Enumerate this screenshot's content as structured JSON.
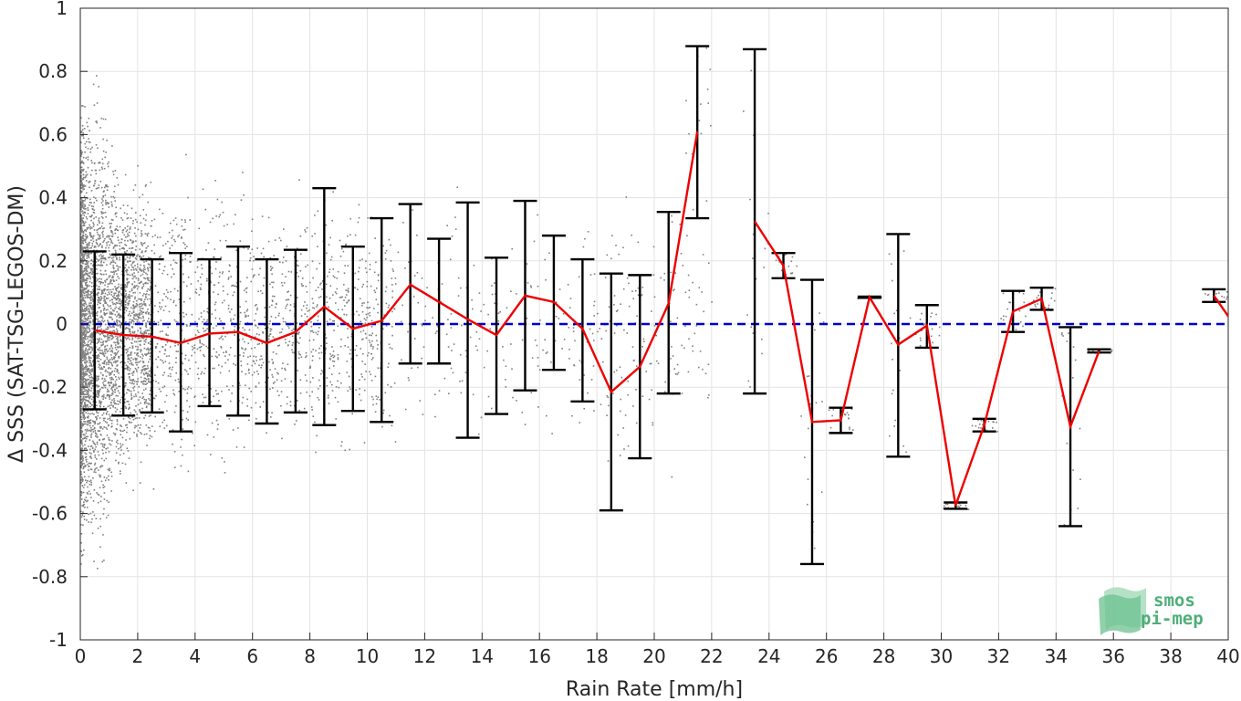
{
  "chart_data": {
    "type": "scatter",
    "xlabel": "Rain Rate [mm/h]",
    "ylabel": "Δ SSS (SAT-TSG-LEGOS-DM)",
    "xlim": [
      0,
      40
    ],
    "ylim": [
      -1,
      1
    ],
    "xticks": [
      0,
      2,
      4,
      6,
      8,
      10,
      12,
      14,
      16,
      18,
      20,
      22,
      24,
      26,
      28,
      30,
      32,
      34,
      36,
      38,
      40
    ],
    "yticks": [
      -1,
      -0.8,
      -0.6,
      -0.4,
      -0.2,
      0,
      0.2,
      0.4,
      0.6,
      0.8,
      1
    ],
    "ytick_labels": [
      "-1",
      "-0.8",
      "-0.6",
      "-0.4",
      "-0.2",
      "0",
      "0.2",
      "0.4",
      "0.6",
      "0.8",
      "1"
    ],
    "grid": true,
    "reference_line": {
      "y": 0,
      "color": "#0000d0",
      "style": "dashed"
    },
    "bins": [
      {
        "x": 0.5,
        "mean": -0.02,
        "lower": -0.27,
        "upper": 0.23
      },
      {
        "x": 1.5,
        "mean": -0.035,
        "lower": -0.29,
        "upper": 0.22
      },
      {
        "x": 2.5,
        "mean": -0.04,
        "lower": -0.28,
        "upper": 0.205
      },
      {
        "x": 3.5,
        "mean": -0.06,
        "lower": -0.34,
        "upper": 0.225
      },
      {
        "x": 4.5,
        "mean": -0.03,
        "lower": -0.26,
        "upper": 0.205
      },
      {
        "x": 5.5,
        "mean": -0.025,
        "lower": -0.29,
        "upper": 0.245
      },
      {
        "x": 6.5,
        "mean": -0.06,
        "lower": -0.315,
        "upper": 0.205
      },
      {
        "x": 7.5,
        "mean": -0.025,
        "lower": -0.28,
        "upper": 0.235
      },
      {
        "x": 8.5,
        "mean": 0.055,
        "lower": -0.32,
        "upper": 0.43
      },
      {
        "x": 9.5,
        "mean": -0.015,
        "lower": -0.275,
        "upper": 0.245
      },
      {
        "x": 10.5,
        "mean": 0.01,
        "lower": -0.31,
        "upper": 0.335
      },
      {
        "x": 11.5,
        "mean": 0.125,
        "lower": -0.125,
        "upper": 0.38
      },
      {
        "x": 12.5,
        "mean": 0.07,
        "lower": -0.125,
        "upper": 0.27
      },
      {
        "x": 13.5,
        "mean": 0.015,
        "lower": -0.36,
        "upper": 0.385
      },
      {
        "x": 14.5,
        "mean": -0.035,
        "lower": -0.285,
        "upper": 0.21
      },
      {
        "x": 15.5,
        "mean": 0.09,
        "lower": -0.21,
        "upper": 0.39
      },
      {
        "x": 16.5,
        "mean": 0.07,
        "lower": -0.145,
        "upper": 0.28
      },
      {
        "x": 17.5,
        "mean": -0.015,
        "lower": -0.245,
        "upper": 0.205
      },
      {
        "x": 18.5,
        "mean": -0.215,
        "lower": -0.59,
        "upper": 0.16
      },
      {
        "x": 19.5,
        "mean": -0.135,
        "lower": -0.425,
        "upper": 0.155
      },
      {
        "x": 20.5,
        "mean": 0.065,
        "lower": -0.22,
        "upper": 0.355
      },
      {
        "x": 21.5,
        "mean": 0.61,
        "lower": 0.335,
        "upper": 0.88
      },
      {
        "x": 22.5,
        "mean": null,
        "lower": null,
        "upper": null
      },
      {
        "x": 23.5,
        "mean": 0.325,
        "lower": -0.22,
        "upper": 0.87
      },
      {
        "x": 24.5,
        "mean": 0.185,
        "lower": 0.145,
        "upper": 0.225
      },
      {
        "x": 25.5,
        "mean": -0.31,
        "lower": -0.76,
        "upper": 0.14
      },
      {
        "x": 26.5,
        "mean": -0.305,
        "lower": -0.345,
        "upper": -0.265
      },
      {
        "x": 27.5,
        "mean": 0.085,
        "lower": 0.083,
        "upper": 0.087
      },
      {
        "x": 28.5,
        "mean": -0.065,
        "lower": -0.42,
        "upper": 0.285
      },
      {
        "x": 29.5,
        "mean": -0.005,
        "lower": -0.075,
        "upper": 0.06
      },
      {
        "x": 30.5,
        "mean": -0.575,
        "lower": -0.585,
        "upper": -0.565
      },
      {
        "x": 31.5,
        "mean": -0.32,
        "lower": -0.34,
        "upper": -0.3
      },
      {
        "x": 32.5,
        "mean": 0.04,
        "lower": -0.025,
        "upper": 0.105
      },
      {
        "x": 33.5,
        "mean": 0.08,
        "lower": 0.045,
        "upper": 0.115
      },
      {
        "x": 34.5,
        "mean": -0.325,
        "lower": -0.64,
        "upper": -0.01
      },
      {
        "x": 35.5,
        "mean": -0.085,
        "lower": -0.09,
        "upper": -0.08
      },
      {
        "x": 36.5,
        "mean": null,
        "lower": null,
        "upper": null
      },
      {
        "x": 37.5,
        "mean": null,
        "lower": null,
        "upper": null
      },
      {
        "x": 38.5,
        "mean": null,
        "lower": null,
        "upper": null
      },
      {
        "x": 39.5,
        "mean": 0.09,
        "lower": 0.07,
        "upper": 0.11
      },
      {
        "x": 40.5,
        "mean": -0.04,
        "lower": null,
        "upper": null
      }
    ],
    "scatter_description_colors": {
      "points": "#808080",
      "mean_line": "#ee0000",
      "error_bars": "#000000"
    }
  },
  "logo": {
    "line1": "smos",
    "line2": "pi-mep",
    "color": "#4fae78"
  }
}
